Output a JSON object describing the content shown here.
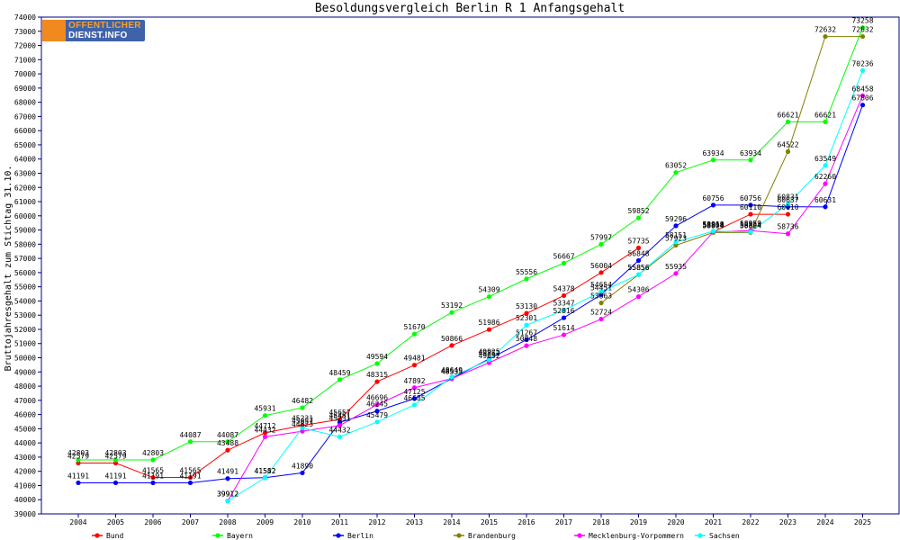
{
  "chart_data": {
    "type": "line",
    "title": "Besoldungsvergleich Berlin R 1 Anfangsgehalt",
    "ylabel": "Bruttojahresgehalt zum Stichtag 31.10.",
    "xlabel": "",
    "ylim": [
      39000,
      74000
    ],
    "ytick_step": 1000,
    "grid": false,
    "legend_position": "bottom",
    "x": [
      "2004",
      "2005",
      "2006",
      "2007",
      "2008",
      "2009",
      "2010",
      "2011",
      "2012",
      "2013",
      "2014",
      "2015",
      "2016",
      "2017",
      "2018",
      "2019",
      "2020",
      "2021",
      "2022",
      "2023",
      "2024",
      "2025"
    ],
    "series": [
      {
        "name": "Bund",
        "color": "#ff0000",
        "values": [
          42579,
          42579,
          41565,
          41565,
          43488,
          44712,
          45231,
          45657,
          48315,
          49481,
          50866,
          51986,
          53130,
          54378,
          56004,
          57735,
          null,
          58868,
          60110,
          60110,
          null,
          null
        ]
      },
      {
        "name": "Bayern",
        "color": "#00ff00",
        "values": [
          42803,
          42803,
          42803,
          44087,
          44087,
          45931,
          46482,
          48459,
          49594,
          51670,
          53192,
          54309,
          55556,
          56667,
          57997,
          59852,
          63052,
          63934,
          63934,
          66621,
          66621,
          73258
        ]
      },
      {
        "name": "Berlin",
        "color": "#0000ff",
        "values": [
          41191,
          41191,
          41191,
          41191,
          41491,
          41552,
          41890,
          45451,
          46245,
          47125,
          48535,
          49925,
          51267,
          52816,
          54451,
          56848,
          59296,
          60756,
          60756,
          60637,
          60631,
          67806
        ]
      },
      {
        "name": "Brandenburg",
        "color": "#808000",
        "values": [
          null,
          null,
          null,
          null,
          null,
          null,
          null,
          null,
          null,
          null,
          null,
          null,
          null,
          null,
          53863,
          55856,
          57923,
          58824,
          58824,
          64522,
          72632,
          72632
        ]
      },
      {
        "name": "Mecklenburg-Vorpommern",
        "color": "#ff00ff",
        "values": [
          null,
          null,
          null,
          null,
          39912,
          44432,
          44823,
          45231,
          46696,
          47892,
          48535,
          49652,
          50848,
          51614,
          52724,
          54306,
          55935,
          58864,
          58959,
          58736,
          62260,
          68458
        ]
      },
      {
        "name": "Sachsen",
        "color": "#00ffff",
        "values": [
          null,
          null,
          null,
          null,
          39912,
          41542,
          45057,
          44432,
          45479,
          46685,
          48649,
          49852,
          52301,
          53347,
          54654,
          55856,
          58151,
          58919,
          58864,
          60831,
          63549,
          70236
        ]
      }
    ]
  },
  "logo": {
    "line1": "OFFENTLICHER",
    "line2": "DIENST.INFO"
  }
}
